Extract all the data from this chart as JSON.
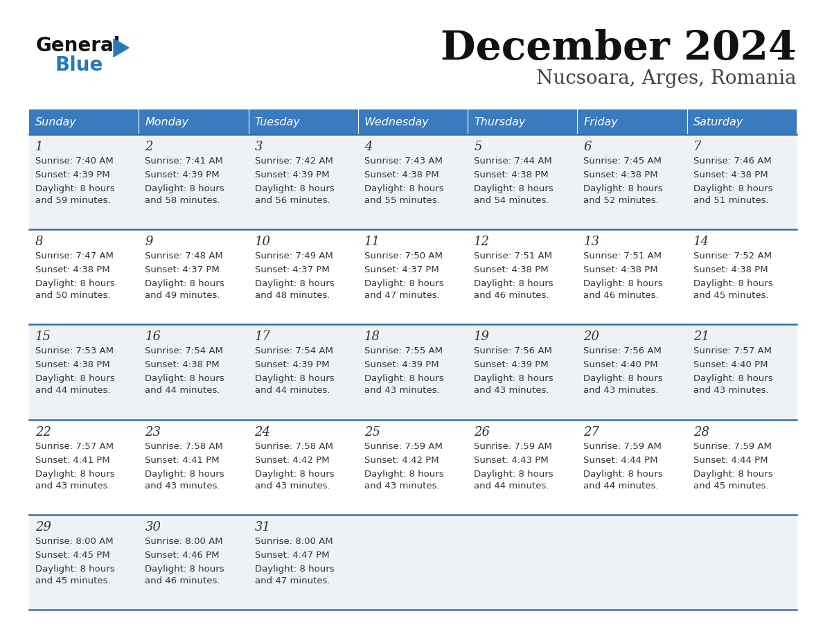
{
  "title": "December 2024",
  "subtitle": "Nucsoara, Arges, Romania",
  "days_of_week": [
    "Sunday",
    "Monday",
    "Tuesday",
    "Wednesday",
    "Thursday",
    "Friday",
    "Saturday"
  ],
  "header_bg": "#3a7abf",
  "header_text": "#ffffff",
  "row_bg_odd": "#eef2f7",
  "row_bg_even": "#ffffff",
  "separator_color": "#3a6fa8",
  "cell_text_color": "#333333",
  "cell_data": [
    [
      {
        "day": "1",
        "sunrise": "7:40 AM",
        "sunset": "4:39 PM",
        "dl1": "8 hours",
        "dl2": "and 59 minutes."
      },
      {
        "day": "2",
        "sunrise": "7:41 AM",
        "sunset": "4:39 PM",
        "dl1": "8 hours",
        "dl2": "and 58 minutes."
      },
      {
        "day": "3",
        "sunrise": "7:42 AM",
        "sunset": "4:39 PM",
        "dl1": "8 hours",
        "dl2": "and 56 minutes."
      },
      {
        "day": "4",
        "sunrise": "7:43 AM",
        "sunset": "4:38 PM",
        "dl1": "8 hours",
        "dl2": "and 55 minutes."
      },
      {
        "day": "5",
        "sunrise": "7:44 AM",
        "sunset": "4:38 PM",
        "dl1": "8 hours",
        "dl2": "and 54 minutes."
      },
      {
        "day": "6",
        "sunrise": "7:45 AM",
        "sunset": "4:38 PM",
        "dl1": "8 hours",
        "dl2": "and 52 minutes."
      },
      {
        "day": "7",
        "sunrise": "7:46 AM",
        "sunset": "4:38 PM",
        "dl1": "8 hours",
        "dl2": "and 51 minutes."
      }
    ],
    [
      {
        "day": "8",
        "sunrise": "7:47 AM",
        "sunset": "4:38 PM",
        "dl1": "8 hours",
        "dl2": "and 50 minutes."
      },
      {
        "day": "9",
        "sunrise": "7:48 AM",
        "sunset": "4:37 PM",
        "dl1": "8 hours",
        "dl2": "and 49 minutes."
      },
      {
        "day": "10",
        "sunrise": "7:49 AM",
        "sunset": "4:37 PM",
        "dl1": "8 hours",
        "dl2": "and 48 minutes."
      },
      {
        "day": "11",
        "sunrise": "7:50 AM",
        "sunset": "4:37 PM",
        "dl1": "8 hours",
        "dl2": "and 47 minutes."
      },
      {
        "day": "12",
        "sunrise": "7:51 AM",
        "sunset": "4:38 PM",
        "dl1": "8 hours",
        "dl2": "and 46 minutes."
      },
      {
        "day": "13",
        "sunrise": "7:51 AM",
        "sunset": "4:38 PM",
        "dl1": "8 hours",
        "dl2": "and 46 minutes."
      },
      {
        "day": "14",
        "sunrise": "7:52 AM",
        "sunset": "4:38 PM",
        "dl1": "8 hours",
        "dl2": "and 45 minutes."
      }
    ],
    [
      {
        "day": "15",
        "sunrise": "7:53 AM",
        "sunset": "4:38 PM",
        "dl1": "8 hours",
        "dl2": "and 44 minutes."
      },
      {
        "day": "16",
        "sunrise": "7:54 AM",
        "sunset": "4:38 PM",
        "dl1": "8 hours",
        "dl2": "and 44 minutes."
      },
      {
        "day": "17",
        "sunrise": "7:54 AM",
        "sunset": "4:39 PM",
        "dl1": "8 hours",
        "dl2": "and 44 minutes."
      },
      {
        "day": "18",
        "sunrise": "7:55 AM",
        "sunset": "4:39 PM",
        "dl1": "8 hours",
        "dl2": "and 43 minutes."
      },
      {
        "day": "19",
        "sunrise": "7:56 AM",
        "sunset": "4:39 PM",
        "dl1": "8 hours",
        "dl2": "and 43 minutes."
      },
      {
        "day": "20",
        "sunrise": "7:56 AM",
        "sunset": "4:40 PM",
        "dl1": "8 hours",
        "dl2": "and 43 minutes."
      },
      {
        "day": "21",
        "sunrise": "7:57 AM",
        "sunset": "4:40 PM",
        "dl1": "8 hours",
        "dl2": "and 43 minutes."
      }
    ],
    [
      {
        "day": "22",
        "sunrise": "7:57 AM",
        "sunset": "4:41 PM",
        "dl1": "8 hours",
        "dl2": "and 43 minutes."
      },
      {
        "day": "23",
        "sunrise": "7:58 AM",
        "sunset": "4:41 PM",
        "dl1": "8 hours",
        "dl2": "and 43 minutes."
      },
      {
        "day": "24",
        "sunrise": "7:58 AM",
        "sunset": "4:42 PM",
        "dl1": "8 hours",
        "dl2": "and 43 minutes."
      },
      {
        "day": "25",
        "sunrise": "7:59 AM",
        "sunset": "4:42 PM",
        "dl1": "8 hours",
        "dl2": "and 43 minutes."
      },
      {
        "day": "26",
        "sunrise": "7:59 AM",
        "sunset": "4:43 PM",
        "dl1": "8 hours",
        "dl2": "and 44 minutes."
      },
      {
        "day": "27",
        "sunrise": "7:59 AM",
        "sunset": "4:44 PM",
        "dl1": "8 hours",
        "dl2": "and 44 minutes."
      },
      {
        "day": "28",
        "sunrise": "7:59 AM",
        "sunset": "4:44 PM",
        "dl1": "8 hours",
        "dl2": "and 45 minutes."
      }
    ],
    [
      {
        "day": "29",
        "sunrise": "8:00 AM",
        "sunset": "4:45 PM",
        "dl1": "8 hours",
        "dl2": "and 45 minutes."
      },
      {
        "day": "30",
        "sunrise": "8:00 AM",
        "sunset": "4:46 PM",
        "dl1": "8 hours",
        "dl2": "and 46 minutes."
      },
      {
        "day": "31",
        "sunrise": "8:00 AM",
        "sunset": "4:47 PM",
        "dl1": "8 hours",
        "dl2": "and 47 minutes."
      },
      null,
      null,
      null,
      null
    ]
  ],
  "logo_general_color": "#111111",
  "logo_blue_color": "#2878c0",
  "logo_triangle_color": "#2878c0",
  "title_color": "#111111",
  "subtitle_color": "#444444"
}
